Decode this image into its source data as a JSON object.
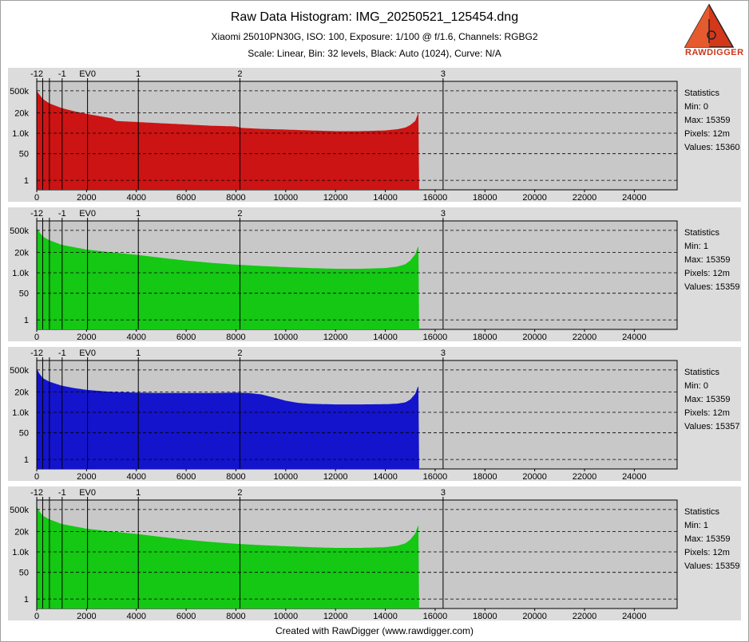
{
  "title": "Raw Data Histogram: IMG_20250521_125454.dng",
  "subtitle1": "Xiaomi 25010PN30G, ISO: 100, Exposure: 1/100 @ f/1.6, Channels: RGBG2",
  "subtitle2": "Scale: Linear, Bin: 32 levels, Black: Auto (1024), Curve: N/A",
  "footer": "Created with RawDigger (www.rawdigger.com)",
  "logo_text": "RAWDIGGER",
  "colors": {
    "panel_bg": "#c8c8c8",
    "outer_bg": "#dcdcdc",
    "accent": "#d4381a"
  },
  "chart_data": [
    {
      "type": "area",
      "channel": "R",
      "color": "#cc1414",
      "x": [
        0,
        100,
        250,
        500,
        1000,
        1500,
        2000,
        3000,
        3200,
        4000,
        5000,
        6000,
        7000,
        8000,
        8200,
        9000,
        10000,
        11000,
        12000,
        13000,
        14000,
        14500,
        14800,
        15000,
        15200,
        15300,
        15359
      ],
      "y": [
        500000,
        300000,
        150000,
        80000,
        40000,
        25000,
        17000,
        9000,
        6000,
        5200,
        4300,
        3600,
        3000,
        2700,
        2200,
        1900,
        1700,
        1500,
        1350,
        1350,
        1500,
        1800,
        2300,
        3300,
        6000,
        15000,
        30000
      ],
      "xlim": [
        0,
        25720
      ],
      "xticks": [
        0,
        2000,
        4000,
        6000,
        8000,
        10000,
        12000,
        14000,
        16000,
        18000,
        20000,
        22000,
        24000
      ],
      "yticks": [
        {
          "v": 500000,
          "label": "500k"
        },
        {
          "v": 20000,
          "label": "20k"
        },
        {
          "v": 1000,
          "label": "1.0k"
        },
        {
          "v": 50,
          "label": "50"
        },
        {
          "v": 1,
          "label": "1"
        }
      ],
      "ylim": [
        0.25,
        2000000
      ],
      "ev_marks": [
        {
          "v": 2,
          "label": "-12"
        },
        {
          "v": 240,
          "label": ""
        },
        {
          "v": 510,
          "label": ""
        },
        {
          "v": 1020,
          "label": "-1"
        },
        {
          "v": 2040,
          "label": "EV0"
        },
        {
          "v": 4080,
          "label": "1"
        },
        {
          "v": 8160,
          "label": "2"
        },
        {
          "v": 16320,
          "label": "3"
        }
      ],
      "stats_title": "Statistics",
      "stats": [
        "Min: 0",
        "Max: 15359",
        "Pixels: 12m",
        "Values: 15360"
      ]
    },
    {
      "type": "area",
      "channel": "G",
      "color": "#14c814",
      "x": [
        0,
        100,
        250,
        500,
        1000,
        2000,
        3000,
        4000,
        5000,
        6000,
        7000,
        8000,
        9000,
        10000,
        11000,
        12000,
        13000,
        14000,
        14500,
        14800,
        15000,
        15200,
        15300,
        15359
      ],
      "y": [
        700000,
        400000,
        200000,
        120000,
        60000,
        30000,
        20000,
        14000,
        9000,
        6000,
        4300,
        3300,
        2700,
        2300,
        2000,
        1800,
        1800,
        2000,
        2500,
        3500,
        6000,
        15000,
        40000,
        60000
      ],
      "xlim": [
        0,
        25720
      ],
      "xticks": [
        0,
        2000,
        4000,
        6000,
        8000,
        10000,
        12000,
        14000,
        16000,
        18000,
        20000,
        22000,
        24000
      ],
      "yticks": [
        {
          "v": 500000,
          "label": "500k"
        },
        {
          "v": 20000,
          "label": "20k"
        },
        {
          "v": 1000,
          "label": "1.0k"
        },
        {
          "v": 50,
          "label": "50"
        },
        {
          "v": 1,
          "label": "1"
        }
      ],
      "ylim": [
        0.25,
        2000000
      ],
      "ev_marks": [
        {
          "v": 2,
          "label": "-12"
        },
        {
          "v": 240,
          "label": ""
        },
        {
          "v": 510,
          "label": ""
        },
        {
          "v": 1020,
          "label": "-1"
        },
        {
          "v": 2040,
          "label": "EV0"
        },
        {
          "v": 4080,
          "label": "1"
        },
        {
          "v": 8160,
          "label": "2"
        },
        {
          "v": 16320,
          "label": "3"
        }
      ],
      "stats_title": "Statistics",
      "stats": [
        "Min: 1",
        "Max: 15359",
        "Pixels: 12m",
        "Values: 15359"
      ]
    },
    {
      "type": "area",
      "channel": "B",
      "color": "#1414cc",
      "x": [
        0,
        100,
        250,
        500,
        1000,
        1500,
        2000,
        3000,
        4000,
        5000,
        6000,
        7000,
        8000,
        8500,
        9000,
        9500,
        10000,
        10500,
        11000,
        12000,
        13000,
        14000,
        14500,
        14800,
        15000,
        15200,
        15300,
        15359
      ],
      "y": [
        600000,
        300000,
        150000,
        90000,
        50000,
        35000,
        27000,
        20000,
        18000,
        17000,
        17000,
        17000,
        18000,
        17000,
        14000,
        9000,
        5500,
        4000,
        3500,
        3200,
        3200,
        3300,
        3600,
        4300,
        6500,
        15000,
        40000,
        50000
      ],
      "xlim": [
        0,
        25720
      ],
      "xticks": [
        0,
        2000,
        4000,
        6000,
        8000,
        10000,
        12000,
        14000,
        16000,
        18000,
        20000,
        22000,
        24000
      ],
      "yticks": [
        {
          "v": 500000,
          "label": "500k"
        },
        {
          "v": 20000,
          "label": "20k"
        },
        {
          "v": 1000,
          "label": "1.0k"
        },
        {
          "v": 50,
          "label": "50"
        },
        {
          "v": 1,
          "label": "1"
        }
      ],
      "ylim": [
        0.25,
        2000000
      ],
      "ev_marks": [
        {
          "v": 2,
          "label": "-12"
        },
        {
          "v": 240,
          "label": ""
        },
        {
          "v": 510,
          "label": ""
        },
        {
          "v": 1020,
          "label": "-1"
        },
        {
          "v": 2040,
          "label": "EV0"
        },
        {
          "v": 4080,
          "label": "1"
        },
        {
          "v": 8160,
          "label": "2"
        },
        {
          "v": 16320,
          "label": "3"
        }
      ],
      "stats_title": "Statistics",
      "stats": [
        "Min: 0",
        "Max: 15359",
        "Pixels: 12m",
        "Values: 15357"
      ]
    },
    {
      "type": "area",
      "channel": "G2",
      "color": "#14c814",
      "x": [
        0,
        100,
        250,
        500,
        1000,
        2000,
        3000,
        4000,
        5000,
        6000,
        7000,
        8000,
        9000,
        10000,
        11000,
        12000,
        13000,
        14000,
        14500,
        14800,
        15000,
        15200,
        15300,
        15359
      ],
      "y": [
        700000,
        400000,
        200000,
        120000,
        60000,
        30000,
        20000,
        14000,
        9000,
        6000,
        4300,
        3300,
        2700,
        2300,
        2000,
        1800,
        1800,
        2000,
        2500,
        3500,
        6000,
        15000,
        40000,
        60000
      ],
      "xlim": [
        0,
        25720
      ],
      "xticks": [
        0,
        2000,
        4000,
        6000,
        8000,
        10000,
        12000,
        14000,
        16000,
        18000,
        20000,
        22000,
        24000
      ],
      "yticks": [
        {
          "v": 500000,
          "label": "500k"
        },
        {
          "v": 20000,
          "label": "20k"
        },
        {
          "v": 1000,
          "label": "1.0k"
        },
        {
          "v": 50,
          "label": "50"
        },
        {
          "v": 1,
          "label": "1"
        }
      ],
      "ylim": [
        0.25,
        2000000
      ],
      "ev_marks": [
        {
          "v": 2,
          "label": "-12"
        },
        {
          "v": 240,
          "label": ""
        },
        {
          "v": 510,
          "label": ""
        },
        {
          "v": 1020,
          "label": "-1"
        },
        {
          "v": 2040,
          "label": "EV0"
        },
        {
          "v": 4080,
          "label": "1"
        },
        {
          "v": 8160,
          "label": "2"
        },
        {
          "v": 16320,
          "label": "3"
        }
      ],
      "stats_title": "Statistics",
      "stats": [
        "Min: 1",
        "Max: 15359",
        "Pixels: 12m",
        "Values: 15359"
      ]
    }
  ]
}
